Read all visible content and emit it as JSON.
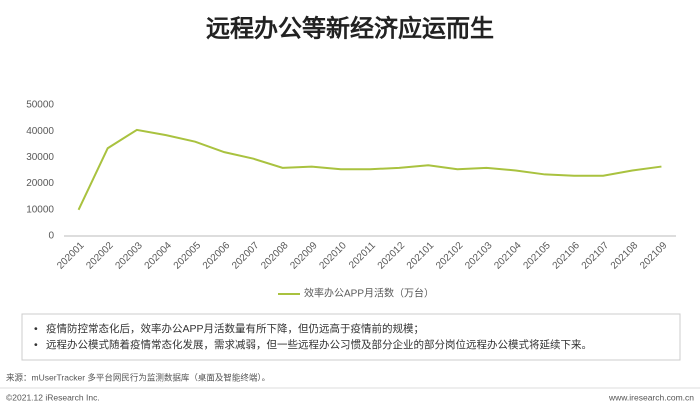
{
  "chart_data": {
    "type": "line",
    "title": "远程办公等新经济应运而生",
    "categories": [
      "202001",
      "202002",
      "202003",
      "202004",
      "202005",
      "202006",
      "202007",
      "202008",
      "202009",
      "202010",
      "202011",
      "202012",
      "202101",
      "202102",
      "202103",
      "202104",
      "202105",
      "202106",
      "202107",
      "202108",
      "202109"
    ],
    "series": [
      {
        "name": "效率办公APP月活数（万台）",
        "color": "#a9c23f",
        "values": [
          10000,
          33500,
          40500,
          38500,
          36000,
          32000,
          29500,
          26000,
          26500,
          25500,
          25500,
          26000,
          27000,
          25500,
          26000,
          25000,
          23500,
          23000,
          23000,
          25000,
          26500
        ]
      }
    ],
    "ylim": [
      0,
      50000
    ],
    "yticks": [
      0,
      10000,
      20000,
      30000,
      40000,
      50000
    ],
    "grid": false,
    "legend": "bottom"
  },
  "notes": [
    "疫情防控常态化后，效率办公APP月活数量有所下降，但仍远高于疫情前的规模；",
    "远程办公模式随着疫情常态化发展，需求减弱，但一些远程办公习惯及部分企业的部分岗位远程办公模式将延续下来。"
  ],
  "source": "来源：mUserTracker 多平台网民行为监测数据库（桌面及智能终端）。",
  "footer": {
    "copyright": "©2021.12 iResearch Inc.",
    "website": "www.iresearch.com.cn"
  }
}
